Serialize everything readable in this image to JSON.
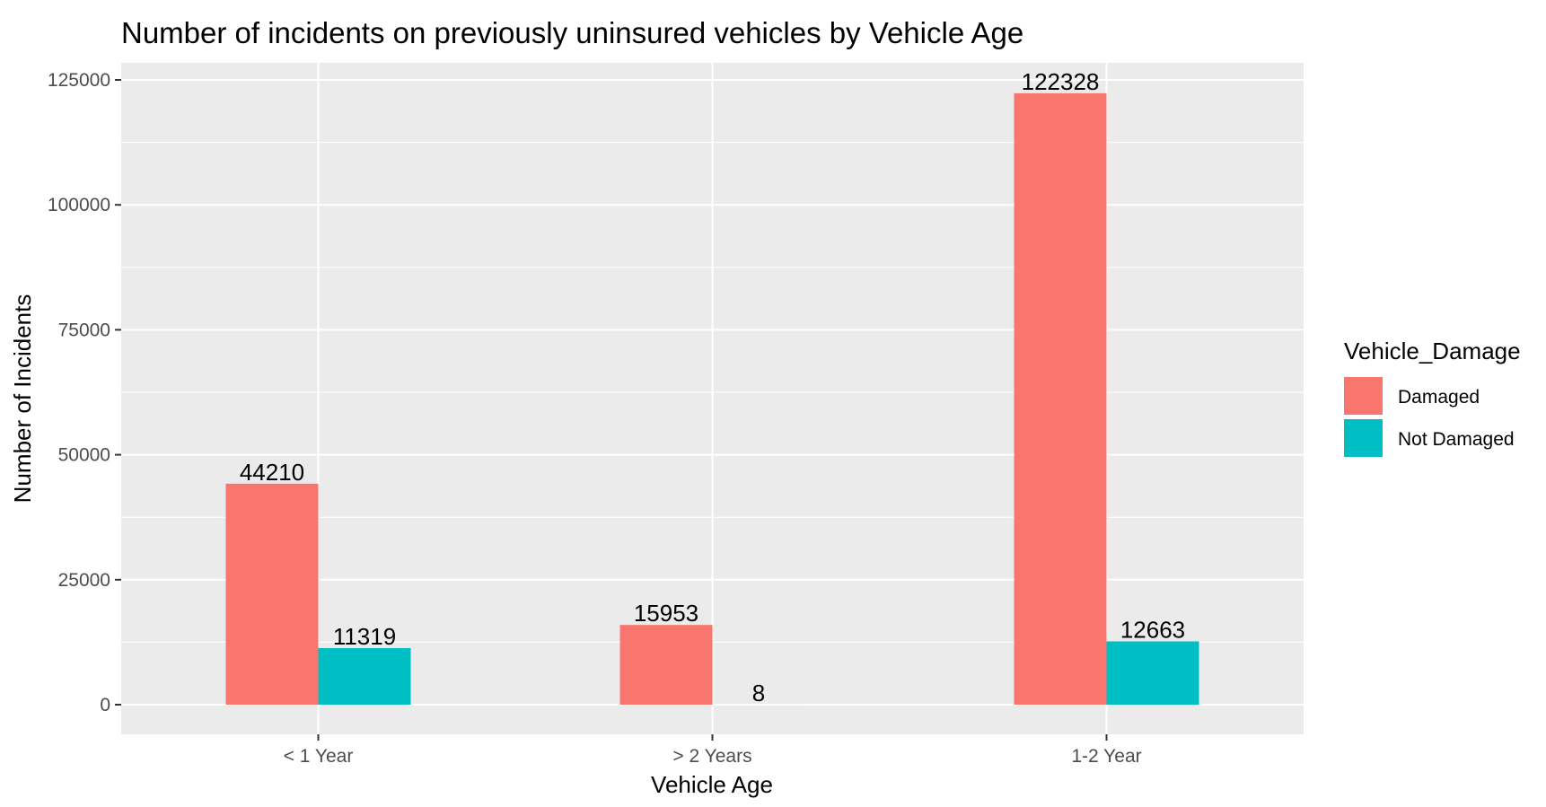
{
  "chart_data": {
    "type": "bar",
    "title": "Number of incidents on previously uninsured vehicles by Vehicle Age",
    "xlabel": "Vehicle Age",
    "ylabel": "Number of Incidents",
    "categories": [
      "< 1 Year",
      "> 2 Years",
      "1-2 Year"
    ],
    "series": [
      {
        "name": "Damaged",
        "color": "#F8766D",
        "values": [
          44210,
          15953,
          122328
        ]
      },
      {
        "name": "Not Damaged",
        "color": "#00BFC4",
        "values": [
          11319,
          8,
          12663
        ]
      }
    ],
    "ylim": [
      0,
      131000
    ],
    "yticks": [
      0,
      25000,
      50000,
      75000,
      100000,
      125000
    ],
    "ytick_labels": [
      "0",
      "25000",
      "50000",
      "75000",
      "100000",
      "125000"
    ],
    "grid": true,
    "legend": {
      "title": "Vehicle_Damage",
      "position": "right"
    },
    "panel_color": "#EBEBEB",
    "grid_color": "#FFFFFF"
  }
}
